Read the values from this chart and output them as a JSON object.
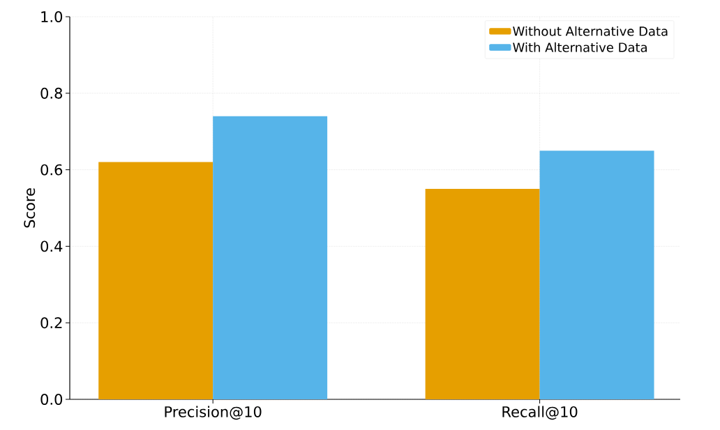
{
  "chart_data": {
    "type": "bar",
    "ylabel": "Score",
    "categories": [
      "Precision@10",
      "Recall@10"
    ],
    "series": [
      {
        "name": "Without Alternative Data",
        "color": "#e69f00",
        "values": [
          0.62,
          0.55
        ]
      },
      {
        "name": "With Alternative Data",
        "color": "#56b4e9",
        "values": [
          0.74,
          0.65
        ]
      }
    ],
    "ylim": [
      0,
      1.0
    ],
    "yticks": [
      {
        "value": 0,
        "label": "0.0"
      },
      {
        "value": 0.2,
        "label": "0.2"
      },
      {
        "value": 0.4,
        "label": "0.4"
      },
      {
        "value": 0.6,
        "label": "0.6"
      },
      {
        "value": 0.8,
        "label": "0.8"
      },
      {
        "value": 1.0,
        "label": "1.0"
      }
    ],
    "grid": true,
    "legend": "top right"
  }
}
